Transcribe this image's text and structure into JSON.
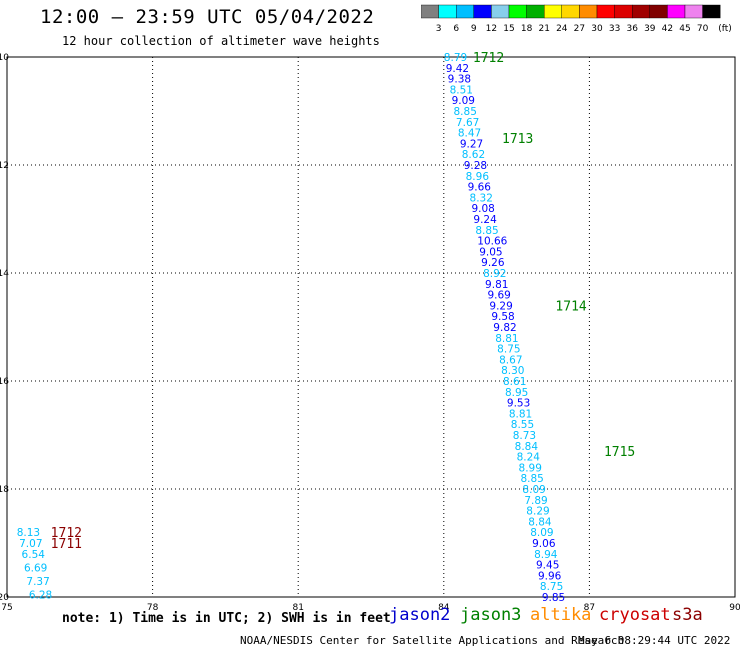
{
  "header": {
    "title": "12:00 – 23:59 UTC 05/04/2022",
    "subtitle": "12 hour collection of altimeter wave heights"
  },
  "colorbar": {
    "labels": [
      "3",
      "6",
      "9",
      "12",
      "15",
      "18",
      "21",
      "24",
      "27",
      "30",
      "33",
      "36",
      "39",
      "42",
      "45",
      "70"
    ],
    "unit": "(ft)",
    "colors": [
      "#808080",
      "#00ffff",
      "#00bfff",
      "#0000ff",
      "#87ceeb",
      "#00ff00",
      "#00b000",
      "#ffff00",
      "#ffd700",
      "#ff8c00",
      "#ff0000",
      "#dc0000",
      "#a00000",
      "#800000",
      "#ff00ff",
      "#ee82ee",
      "#000000"
    ]
  },
  "footer": {
    "note": "note: 1) Time is in UTC; 2) SWH is in feet",
    "satellites": [
      {
        "name": "jason2",
        "color": "#0000cc"
      },
      {
        "name": "jason3",
        "color": "#008000"
      },
      {
        "name": "altika",
        "color": "#ff8c00"
      },
      {
        "name": "cryosat",
        "color": "#cc0000"
      },
      {
        "name": "s3a",
        "color": "#8b0000"
      }
    ],
    "credit": "NOAA/NESDIS Center for Satellite Applications and Research",
    "timestamp": "May  6 08:29:44 UTC 2022"
  },
  "chart_data": {
    "type": "scatter",
    "xlim": [
      75,
      90
    ],
    "ylim": [
      -20,
      -10
    ],
    "x_ticks": [
      "75",
      "78",
      "81",
      "84",
      "87",
      "90"
    ],
    "y_ticks": [
      "-10",
      "-12",
      "-14",
      "-16",
      "-18",
      "-20"
    ],
    "grid": true,
    "series": [
      {
        "name": "jason3",
        "text_color": "#008000",
        "track_labels": [
          {
            "text": "1712",
            "x": 84.6,
            "y": -10.0
          },
          {
            "text": "1713",
            "x": 85.2,
            "y": -11.5
          },
          {
            "text": "1714",
            "x": 86.3,
            "y": -14.6
          },
          {
            "text": "1715",
            "x": 87.3,
            "y": -17.3
          }
        ],
        "points": [
          {
            "x": 84.0,
            "y": -10.0,
            "v": 8.79,
            "c": "#00bfff"
          },
          {
            "x": 84.04,
            "y": -10.2,
            "v": 9.42,
            "c": "#0000ff"
          },
          {
            "x": 84.08,
            "y": -10.4,
            "v": 9.38,
            "c": "#0000ff"
          },
          {
            "x": 84.12,
            "y": -10.6,
            "v": 8.51,
            "c": "#00bfff"
          },
          {
            "x": 84.16,
            "y": -10.8,
            "v": 9.09,
            "c": "#0000ff"
          },
          {
            "x": 84.2,
            "y": -11.0,
            "v": 8.85,
            "c": "#00bfff"
          },
          {
            "x": 84.25,
            "y": -11.2,
            "v": 7.67,
            "c": "#00bfff"
          },
          {
            "x": 84.29,
            "y": -11.4,
            "v": 8.47,
            "c": "#00bfff"
          },
          {
            "x": 84.33,
            "y": -11.6,
            "v": 9.27,
            "c": "#0000ff"
          },
          {
            "x": 84.37,
            "y": -11.8,
            "v": 8.62,
            "c": "#00bfff"
          },
          {
            "x": 84.41,
            "y": -12.0,
            "v": 9.28,
            "c": "#0000ff"
          },
          {
            "x": 84.45,
            "y": -12.2,
            "v": 8.96,
            "c": "#00bfff"
          },
          {
            "x": 84.49,
            "y": -12.4,
            "v": 9.66,
            "c": "#0000ff"
          },
          {
            "x": 84.53,
            "y": -12.6,
            "v": 8.32,
            "c": "#00bfff"
          },
          {
            "x": 84.57,
            "y": -12.8,
            "v": 9.08,
            "c": "#0000ff"
          },
          {
            "x": 84.61,
            "y": -13.0,
            "v": 9.24,
            "c": "#0000ff"
          },
          {
            "x": 84.65,
            "y": -13.2,
            "v": 8.85,
            "c": "#00bfff"
          },
          {
            "x": 84.69,
            "y": -13.4,
            "v": 10.66,
            "c": "#0000ff"
          },
          {
            "x": 84.73,
            "y": -13.6,
            "v": 9.05,
            "c": "#0000ff"
          },
          {
            "x": 84.77,
            "y": -13.8,
            "v": 9.26,
            "c": "#0000ff"
          },
          {
            "x": 84.81,
            "y": -14.0,
            "v": 8.92,
            "c": "#00bfff"
          },
          {
            "x": 84.85,
            "y": -14.2,
            "v": 9.81,
            "c": "#0000ff"
          },
          {
            "x": 84.9,
            "y": -14.4,
            "v": 9.69,
            "c": "#0000ff"
          },
          {
            "x": 84.94,
            "y": -14.6,
            "v": 9.29,
            "c": "#0000ff"
          },
          {
            "x": 84.98,
            "y": -14.8,
            "v": 9.58,
            "c": "#0000ff"
          },
          {
            "x": 85.02,
            "y": -15.0,
            "v": 9.82,
            "c": "#0000ff"
          },
          {
            "x": 85.06,
            "y": -15.2,
            "v": 8.81,
            "c": "#00bfff"
          },
          {
            "x": 85.1,
            "y": -15.4,
            "v": 8.75,
            "c": "#00bfff"
          },
          {
            "x": 85.14,
            "y": -15.6,
            "v": 8.67,
            "c": "#00bfff"
          },
          {
            "x": 85.18,
            "y": -15.8,
            "v": 8.3,
            "c": "#00bfff"
          },
          {
            "x": 85.22,
            "y": -16.0,
            "v": 8.61,
            "c": "#00bfff"
          },
          {
            "x": 85.26,
            "y": -16.2,
            "v": 8.95,
            "c": "#00bfff"
          },
          {
            "x": 85.3,
            "y": -16.4,
            "v": 9.53,
            "c": "#0000ff"
          },
          {
            "x": 85.34,
            "y": -16.6,
            "v": 8.81,
            "c": "#00bfff"
          },
          {
            "x": 85.38,
            "y": -16.8,
            "v": 8.55,
            "c": "#00bfff"
          },
          {
            "x": 85.42,
            "y": -17.0,
            "v": 8.73,
            "c": "#00bfff"
          },
          {
            "x": 85.46,
            "y": -17.2,
            "v": 8.84,
            "c": "#00bfff"
          },
          {
            "x": 85.5,
            "y": -17.4,
            "v": 8.24,
            "c": "#00bfff"
          },
          {
            "x": 85.54,
            "y": -17.6,
            "v": 8.99,
            "c": "#00bfff"
          },
          {
            "x": 85.58,
            "y": -17.8,
            "v": 8.85,
            "c": "#00bfff"
          },
          {
            "x": 85.62,
            "y": -18.0,
            "v": 8.09,
            "c": "#00bfff"
          },
          {
            "x": 85.66,
            "y": -18.2,
            "v": 7.89,
            "c": "#00bfff"
          },
          {
            "x": 85.7,
            "y": -18.4,
            "v": 8.29,
            "c": "#00bfff"
          },
          {
            "x": 85.74,
            "y": -18.6,
            "v": 8.84,
            "c": "#00bfff"
          },
          {
            "x": 85.78,
            "y": -18.8,
            "v": 8.09,
            "c": "#00bfff"
          },
          {
            "x": 85.82,
            "y": -19.0,
            "v": 9.06,
            "c": "#0000ff"
          },
          {
            "x": 85.86,
            "y": -19.2,
            "v": 8.94,
            "c": "#00bfff"
          },
          {
            "x": 85.9,
            "y": -19.4,
            "v": 9.45,
            "c": "#0000ff"
          },
          {
            "x": 85.94,
            "y": -19.6,
            "v": 9.96,
            "c": "#0000ff"
          },
          {
            "x": 85.98,
            "y": -19.8,
            "v": 8.75,
            "c": "#00bfff"
          },
          {
            "x": 86.02,
            "y": -20.0,
            "v": 9.85,
            "c": "#0000ff"
          }
        ]
      },
      {
        "name": "s3a",
        "text_color": "#8b0000",
        "track_labels": [
          {
            "text": "1712",
            "x": 75.9,
            "y": -18.8
          },
          {
            "text": "1711",
            "x": 75.9,
            "y": -19.0
          }
        ],
        "points": [
          {
            "x": 75.2,
            "y": -18.8,
            "v": 8.13,
            "c": "#00bfff"
          },
          {
            "x": 75.25,
            "y": -19.0,
            "v": 7.07,
            "c": "#00bfff"
          },
          {
            "x": 75.3,
            "y": -19.2,
            "v": 6.54,
            "c": "#00bfff"
          },
          {
            "x": 75.35,
            "y": -19.45,
            "v": 6.69,
            "c": "#00bfff"
          },
          {
            "x": 75.4,
            "y": -19.7,
            "v": 7.37,
            "c": "#00bfff"
          },
          {
            "x": 75.45,
            "y": -19.95,
            "v": 6.28,
            "c": "#00bfff"
          }
        ]
      }
    ]
  }
}
